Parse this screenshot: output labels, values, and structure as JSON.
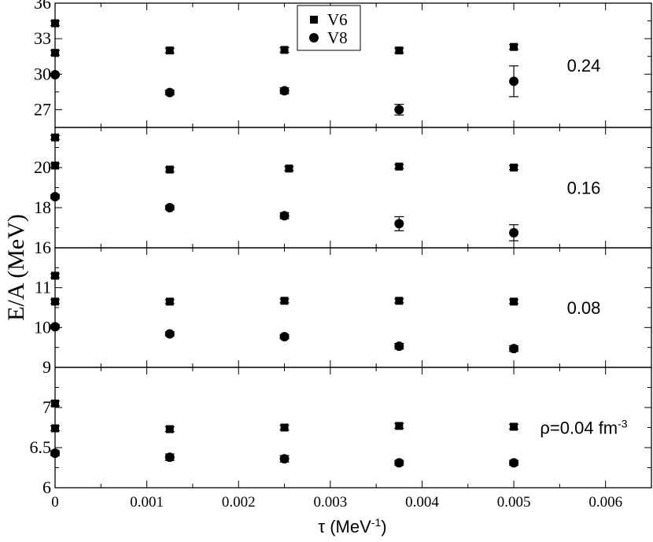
{
  "chart_data": {
    "type": "scatter",
    "ylabel": "E/A (MeV)",
    "xlabel": {
      "base": "τ (MeV",
      "sup": "-1",
      "tail": ")"
    },
    "xlim": [
      0,
      0.0065
    ],
    "x_ticks": [
      {
        "value": 0,
        "label": "0"
      },
      {
        "value": 0.001,
        "label": "0.001"
      },
      {
        "value": 0.002,
        "label": "0.002"
      },
      {
        "value": 0.003,
        "label": "0.003"
      },
      {
        "value": 0.004,
        "label": "0.004"
      },
      {
        "value": 0.005,
        "label": "0.005"
      },
      {
        "value": 0.006,
        "label": "0.006"
      }
    ],
    "legend": {
      "placement": "top-center",
      "entries": [
        {
          "name": "V6",
          "marker": "square"
        },
        {
          "name": "V8",
          "marker": "circle"
        }
      ]
    },
    "panels": [
      {
        "label": "0.24",
        "ylim": [
          25.5,
          36
        ],
        "yticks": [
          27,
          30,
          33,
          36
        ],
        "series": [
          {
            "name": "V6",
            "marker": "square",
            "points": [
              {
                "x": 0,
                "y": 34.3,
                "err": 0.2
              },
              {
                "x": 0,
                "y": 31.8,
                "err": 0.2
              },
              {
                "x": 0.00125,
                "y": 32.0,
                "err": 0.2
              },
              {
                "x": 0.0025,
                "y": 32.05,
                "err": 0.2
              },
              {
                "x": 0.00375,
                "y": 32.0,
                "err": 0.2
              },
              {
                "x": 0.005,
                "y": 32.3,
                "err": 0.2
              }
            ]
          },
          {
            "name": "V8",
            "marker": "circle",
            "points": [
              {
                "x": 0,
                "y": 29.95,
                "err": 0.1
              },
              {
                "x": 0.00125,
                "y": 28.45,
                "err": 0.2
              },
              {
                "x": 0.0025,
                "y": 28.6,
                "err": 0.25
              },
              {
                "x": 0.00375,
                "y": 27.0,
                "err": 0.45
              },
              {
                "x": 0.005,
                "y": 29.4,
                "err": 1.3
              }
            ]
          }
        ]
      },
      {
        "label": "0.16",
        "ylim": [
          16,
          22
        ],
        "yticks": [
          16,
          18,
          20
        ],
        "series": [
          {
            "name": "V6",
            "marker": "square",
            "points": [
              {
                "x": 0,
                "y": 21.5,
                "err": 0.1
              },
              {
                "x": 0,
                "y": 20.1,
                "err": 0.1
              },
              {
                "x": 0.00125,
                "y": 19.9,
                "err": 0.1
              },
              {
                "x": 0.00255,
                "y": 19.95,
                "err": 0.1
              },
              {
                "x": 0.00375,
                "y": 20.05,
                "err": 0.1
              },
              {
                "x": 0.005,
                "y": 20.0,
                "err": 0.1
              }
            ]
          },
          {
            "name": "V8",
            "marker": "circle",
            "points": [
              {
                "x": 0,
                "y": 18.55,
                "err": 0.1
              },
              {
                "x": 0.00125,
                "y": 18.0,
                "err": 0.1
              },
              {
                "x": 0.0025,
                "y": 17.6,
                "err": 0.15
              },
              {
                "x": 0.00375,
                "y": 17.2,
                "err": 0.35
              },
              {
                "x": 0.005,
                "y": 16.75,
                "err": 0.4
              }
            ]
          }
        ]
      },
      {
        "label": "0.08",
        "ylim": [
          9,
          12
        ],
        "yticks": [
          9,
          10,
          11
        ],
        "series": [
          {
            "name": "V6",
            "marker": "square",
            "points": [
              {
                "x": 0,
                "y": 11.3,
                "err": 0.05
              },
              {
                "x": 0,
                "y": 10.65,
                "err": 0.05
              },
              {
                "x": 0.00125,
                "y": 10.65,
                "err": 0.05
              },
              {
                "x": 0.0025,
                "y": 10.67,
                "err": 0.05
              },
              {
                "x": 0.00375,
                "y": 10.67,
                "err": 0.05
              },
              {
                "x": 0.005,
                "y": 10.65,
                "err": 0.05
              }
            ]
          },
          {
            "name": "V8",
            "marker": "circle",
            "points": [
              {
                "x": 0,
                "y": 10.02,
                "err": 0.05
              },
              {
                "x": 0.00125,
                "y": 9.84,
                "err": 0.05
              },
              {
                "x": 0.0025,
                "y": 9.77,
                "err": 0.05
              },
              {
                "x": 0.00375,
                "y": 9.53,
                "err": 0.07
              },
              {
                "x": 0.005,
                "y": 9.47,
                "err": 0.07
              }
            ]
          }
        ]
      },
      {
        "label_parts": {
          "base": "ρ=0.04 fm",
          "sup": "-3"
        },
        "ylim": [
          6,
          7.5
        ],
        "yticks": [
          6,
          6.5,
          7
        ],
        "ytick_labels": [
          "6",
          "6.5",
          "7"
        ],
        "series": [
          {
            "name": "V6",
            "marker": "square",
            "points": [
              {
                "x": 0,
                "y": 7.05,
                "err": 0.03
              },
              {
                "x": 0,
                "y": 6.74,
                "err": 0.03
              },
              {
                "x": 0.00125,
                "y": 6.73,
                "err": 0.03
              },
              {
                "x": 0.0025,
                "y": 6.75,
                "err": 0.03
              },
              {
                "x": 0.00375,
                "y": 6.77,
                "err": 0.03
              },
              {
                "x": 0.005,
                "y": 6.76,
                "err": 0.03
              }
            ]
          },
          {
            "name": "V8",
            "marker": "circle",
            "points": [
              {
                "x": 0,
                "y": 6.43,
                "err": 0.03
              },
              {
                "x": 0.00125,
                "y": 6.38,
                "err": 0.04
              },
              {
                "x": 0.0025,
                "y": 6.36,
                "err": 0.04
              },
              {
                "x": 0.00375,
                "y": 6.31,
                "err": 0.03
              },
              {
                "x": 0.005,
                "y": 6.31,
                "err": 0.03
              }
            ]
          }
        ]
      }
    ]
  }
}
